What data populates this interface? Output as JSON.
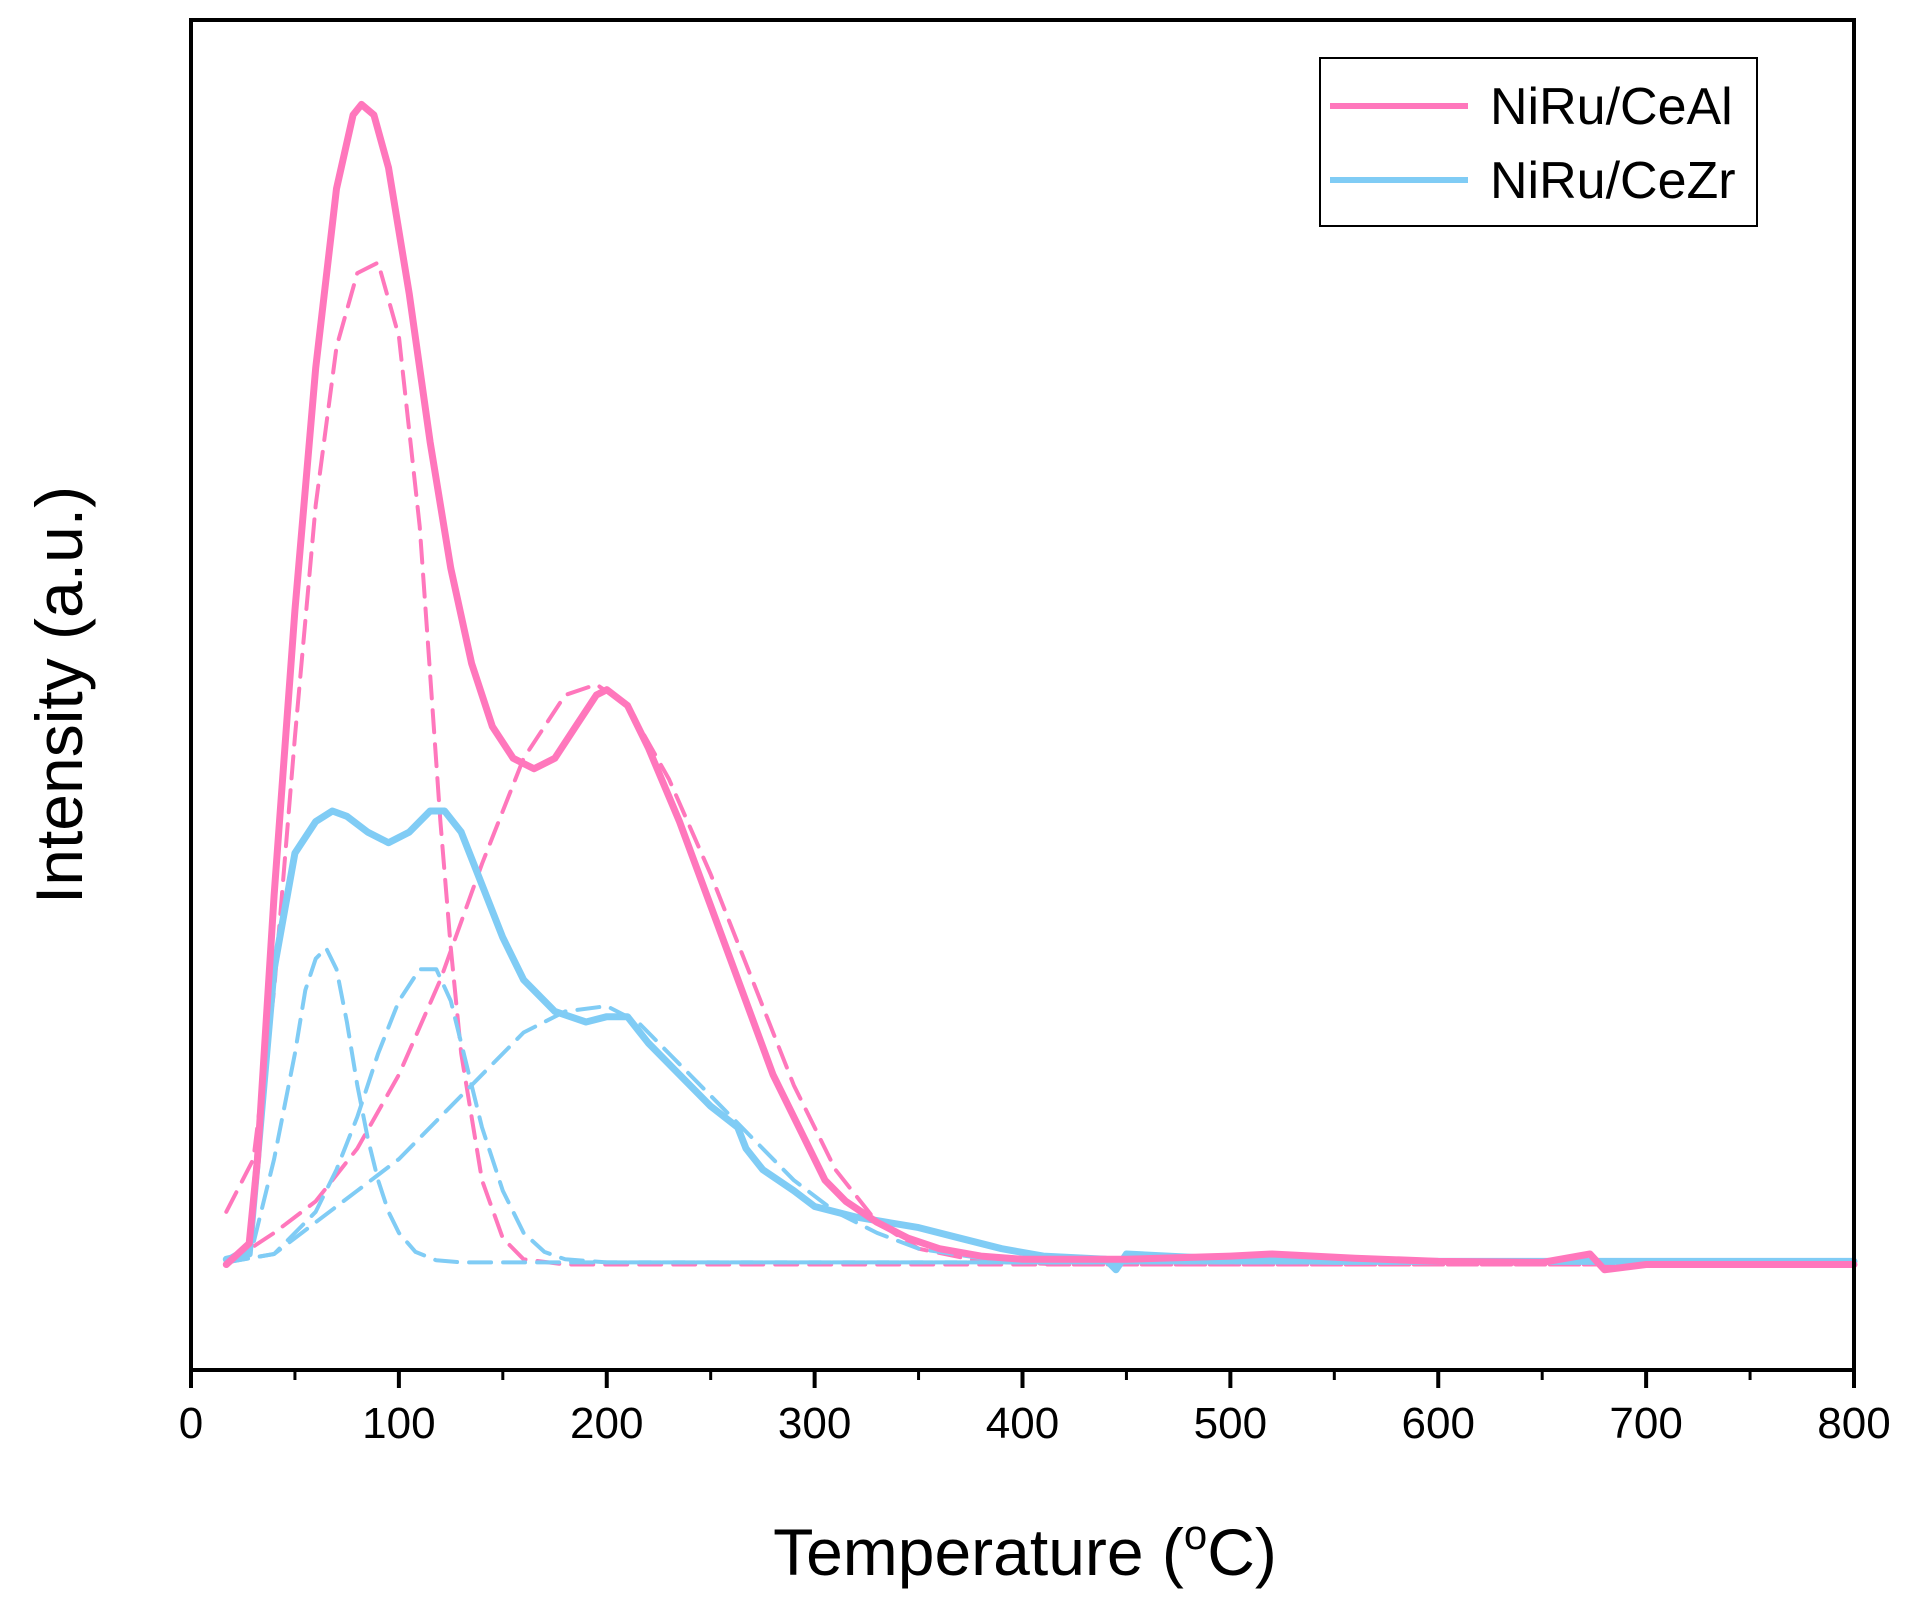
{
  "chart_data": {
    "type": "line",
    "title": "",
    "xlabel": "Temperature (",
    "xlabel_sup": "o",
    "xlabel_suffix": "C)",
    "ylabel": "Intensity (a.u.)",
    "xlim": [
      0,
      800
    ],
    "ylim": [
      -0.1,
      1.18
    ],
    "x_ticks": [
      0,
      100,
      200,
      300,
      400,
      500,
      600,
      700,
      800
    ],
    "x_tick_labels": [
      "0",
      "100",
      "200",
      "300",
      "400",
      "500",
      "600",
      "700",
      "800"
    ],
    "y_ticks_shown": false,
    "grid": false,
    "legend_position": "top-right",
    "series": [
      {
        "name": "NiRu/CeAl",
        "color": "#ff77bc",
        "style": "solid",
        "x": [
          17,
          28,
          32,
          40,
          50,
          60,
          70,
          78,
          82,
          88,
          95,
          105,
          115,
          125,
          135,
          145,
          155,
          165,
          175,
          185,
          195,
          200,
          210,
          220,
          235,
          250,
          265,
          280,
          295,
          305,
          315,
          330,
          345,
          360,
          380,
          400,
          450,
          500,
          520,
          560,
          600,
          650,
          673,
          680,
          700,
          750,
          800
        ],
        "y": [
          0.0,
          0.02,
          0.1,
          0.35,
          0.62,
          0.85,
          1.02,
          1.09,
          1.1,
          1.09,
          1.04,
          0.92,
          0.78,
          0.66,
          0.57,
          0.51,
          0.48,
          0.47,
          0.48,
          0.51,
          0.54,
          0.545,
          0.53,
          0.49,
          0.42,
          0.34,
          0.26,
          0.18,
          0.12,
          0.08,
          0.06,
          0.04,
          0.025,
          0.015,
          0.008,
          0.005,
          0.005,
          0.008,
          0.01,
          0.006,
          0.003,
          0.002,
          0.01,
          -0.005,
          0.0,
          0.0,
          0.0
        ]
      },
      {
        "name": "NiRu/CeZr",
        "color": "#80ccf5",
        "style": "solid",
        "x": [
          17,
          28,
          32,
          40,
          50,
          60,
          68,
          75,
          85,
          95,
          105,
          115,
          122,
          130,
          140,
          150,
          160,
          175,
          190,
          200,
          210,
          220,
          235,
          250,
          263,
          267,
          275,
          290,
          300,
          320,
          350,
          370,
          390,
          410,
          440,
          445,
          450,
          500,
          550,
          600,
          700,
          800
        ],
        "y": [
          0.005,
          0.01,
          0.1,
          0.28,
          0.39,
          0.42,
          0.43,
          0.425,
          0.41,
          0.4,
          0.41,
          0.43,
          0.43,
          0.41,
          0.36,
          0.31,
          0.27,
          0.24,
          0.23,
          0.235,
          0.235,
          0.21,
          0.18,
          0.15,
          0.13,
          0.11,
          0.09,
          0.07,
          0.055,
          0.045,
          0.035,
          0.025,
          0.015,
          0.008,
          0.005,
          -0.005,
          0.01,
          0.005,
          0.003,
          0.003,
          0.003,
          0.003
        ]
      },
      {
        "name": "",
        "color": "#ff77bc",
        "style": "dashed",
        "x": [
          17,
          30,
          40,
          50,
          60,
          70,
          80,
          90,
          100,
          110,
          115,
          120,
          125,
          130,
          140,
          150,
          160,
          180,
          200,
          800
        ],
        "y": [
          0.05,
          0.1,
          0.26,
          0.5,
          0.72,
          0.87,
          0.94,
          0.95,
          0.88,
          0.7,
          0.56,
          0.42,
          0.3,
          0.2,
          0.08,
          0.025,
          0.005,
          0.0,
          0.0,
          0.0
        ]
      },
      {
        "name": "",
        "color": "#ff77bc",
        "style": "dashed",
        "x": [
          17,
          40,
          60,
          80,
          100,
          120,
          140,
          160,
          180,
          195,
          210,
          230,
          250,
          270,
          290,
          310,
          330,
          350,
          380,
          420,
          800
        ],
        "y": [
          0.0,
          0.03,
          0.06,
          0.11,
          0.18,
          0.27,
          0.38,
          0.48,
          0.54,
          0.55,
          0.53,
          0.46,
          0.37,
          0.27,
          0.17,
          0.09,
          0.04,
          0.015,
          0.003,
          0.0,
          0.0
        ]
      },
      {
        "name": "",
        "color": "#80ccf5",
        "style": "dashed",
        "x": [
          17,
          30,
          40,
          50,
          55,
          60,
          65,
          70,
          75,
          80,
          85,
          90,
          95,
          100,
          108,
          118,
          130,
          150,
          800
        ],
        "y": [
          0.005,
          0.02,
          0.1,
          0.2,
          0.26,
          0.29,
          0.3,
          0.28,
          0.23,
          0.17,
          0.12,
          0.08,
          0.05,
          0.03,
          0.012,
          0.004,
          0.002,
          0.002,
          0.002
        ]
      },
      {
        "name": "",
        "color": "#80ccf5",
        "style": "dashed",
        "x": [
          17,
          40,
          60,
          70,
          80,
          90,
          100,
          110,
          118,
          125,
          130,
          140,
          150,
          160,
          170,
          180,
          200,
          220,
          800
        ],
        "y": [
          0.002,
          0.01,
          0.05,
          0.09,
          0.14,
          0.2,
          0.25,
          0.28,
          0.28,
          0.25,
          0.21,
          0.13,
          0.07,
          0.03,
          0.012,
          0.005,
          0.002,
          0.002,
          0.002
        ]
      },
      {
        "name": "",
        "color": "#80ccf5",
        "style": "dashed",
        "x": [
          17,
          40,
          60,
          80,
          100,
          120,
          140,
          160,
          180,
          200,
          215,
          230,
          250,
          270,
          290,
          310,
          330,
          350,
          380,
          420,
          500,
          800
        ],
        "y": [
          0.002,
          0.01,
          0.04,
          0.07,
          0.1,
          0.14,
          0.18,
          0.22,
          0.24,
          0.245,
          0.23,
          0.2,
          0.16,
          0.12,
          0.08,
          0.05,
          0.03,
          0.015,
          0.006,
          0.003,
          0.002,
          0.002
        ]
      }
    ]
  }
}
